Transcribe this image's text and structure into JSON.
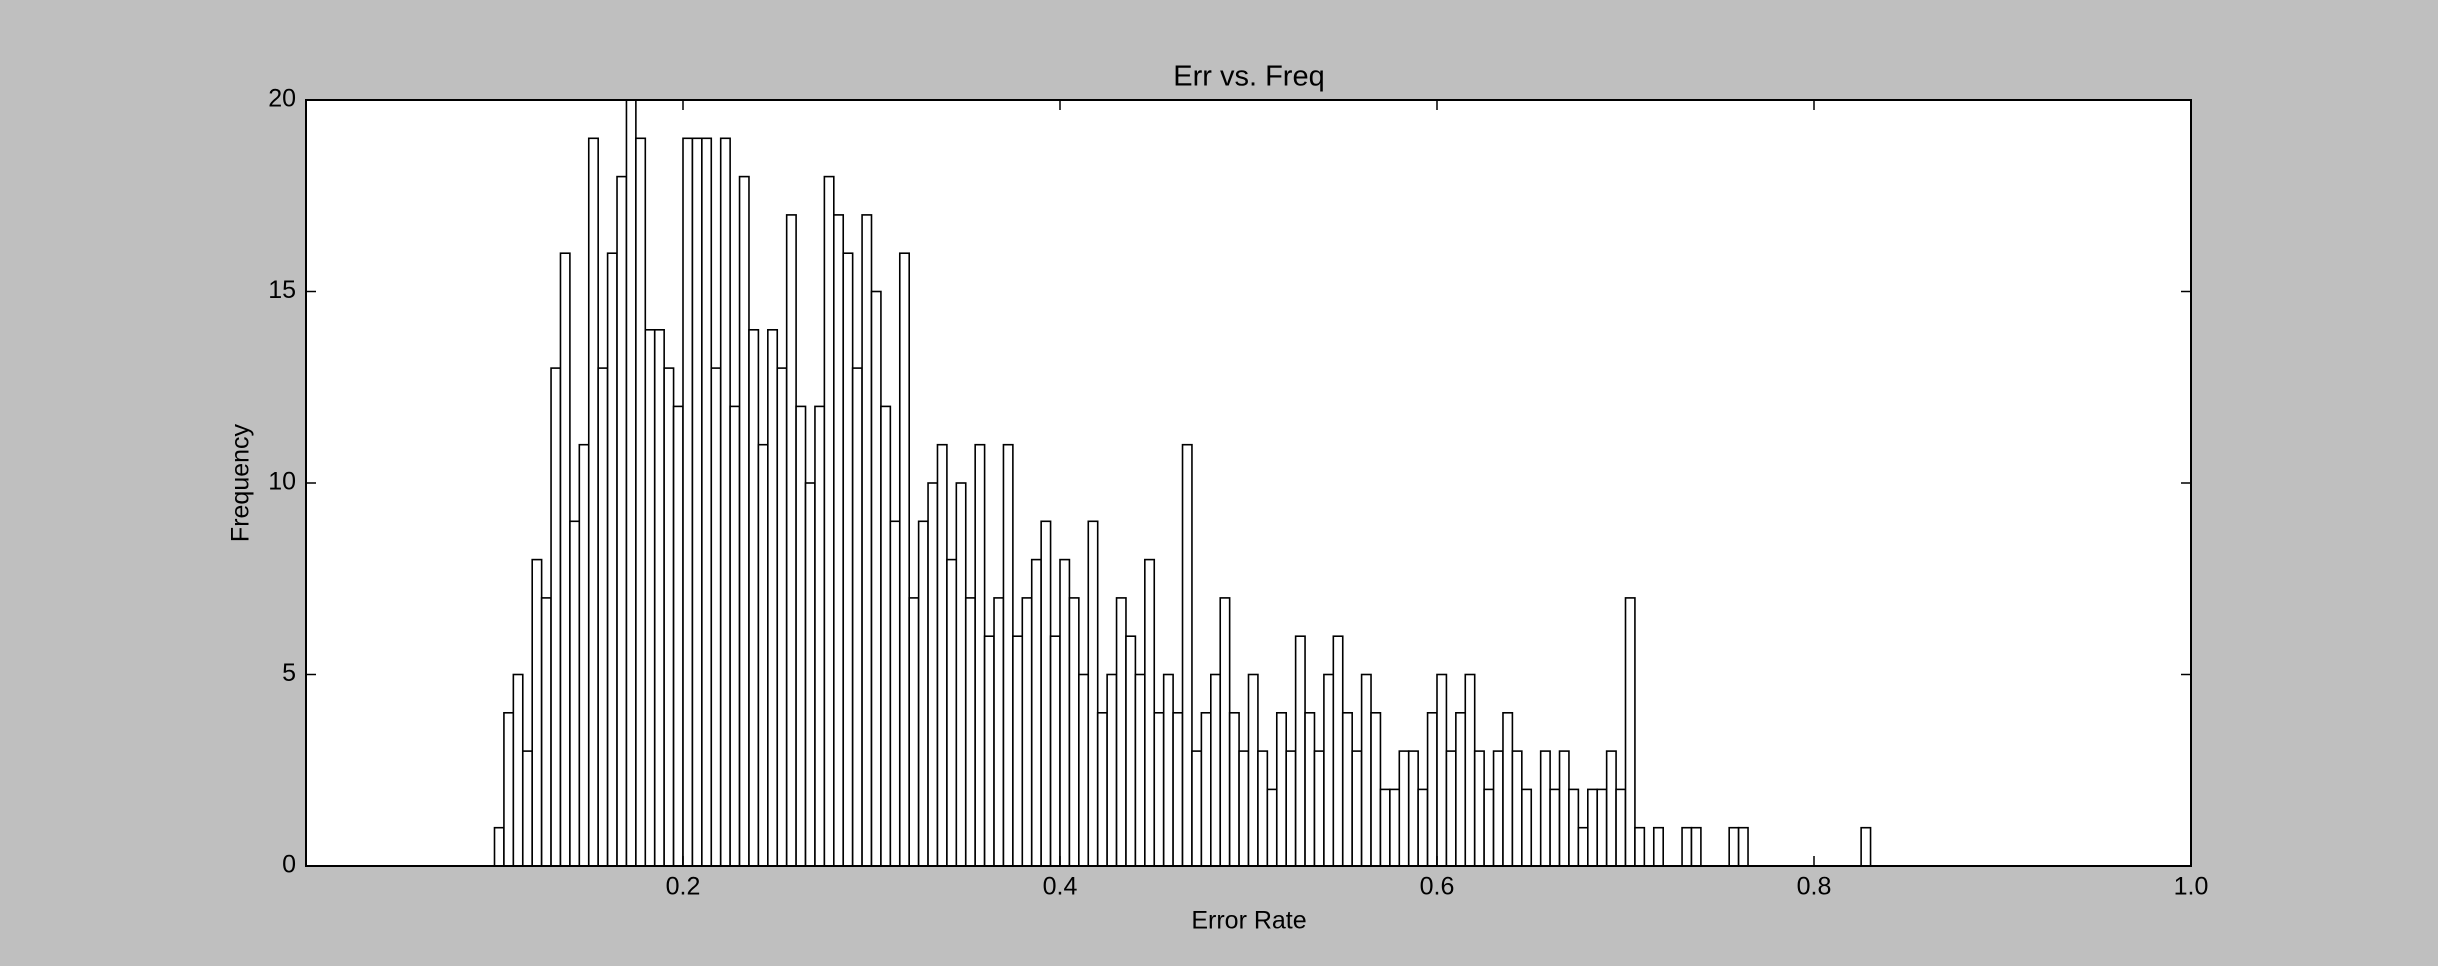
{
  "chart_data": {
    "type": "histogram",
    "title": "Err vs. Freq",
    "x_label": "Error Rate",
    "y_label": "Frequency",
    "bins": [
      0.1,
      0.105,
      0.11,
      0.115,
      0.12,
      0.125,
      0.13,
      0.135,
      0.14,
      0.145,
      0.15,
      0.155,
      0.16,
      0.165,
      0.17,
      0.175,
      0.18,
      0.185,
      0.19,
      0.195,
      0.2,
      0.205,
      0.21,
      0.215,
      0.22,
      0.225,
      0.23,
      0.235,
      0.24,
      0.245,
      0.25,
      0.255,
      0.26,
      0.265,
      0.27,
      0.275,
      0.28,
      0.285,
      0.29,
      0.295,
      0.3,
      0.305,
      0.31,
      0.315,
      0.32,
      0.325,
      0.33,
      0.335,
      0.34,
      0.345,
      0.35,
      0.355,
      0.36,
      0.365,
      0.37,
      0.375,
      0.38,
      0.385,
      0.39,
      0.395,
      0.4,
      0.405,
      0.41,
      0.415,
      0.42,
      0.425,
      0.43,
      0.435,
      0.44,
      0.445,
      0.45,
      0.455,
      0.46,
      0.465,
      0.47,
      0.475,
      0.48,
      0.485,
      0.49,
      0.495,
      0.5,
      0.505,
      0.51,
      0.515,
      0.52,
      0.525,
      0.53,
      0.535,
      0.54,
      0.545,
      0.55,
      0.555,
      0.56,
      0.565,
      0.57,
      0.575,
      0.58,
      0.585,
      0.59,
      0.595,
      0.6,
      0.605,
      0.61,
      0.615,
      0.62,
      0.625,
      0.63,
      0.635,
      0.64,
      0.645,
      0.65,
      0.655,
      0.66,
      0.665,
      0.67,
      0.675,
      0.68,
      0.685,
      0.69,
      0.695,
      0.7,
      0.705,
      0.71,
      0.715,
      0.72,
      0.725,
      0.73,
      0.735,
      0.74,
      0.745,
      0.75,
      0.755,
      0.76,
      0.765,
      0.77,
      0.775,
      0.78,
      0.785,
      0.79,
      0.795,
      0.8,
      0.805,
      0.81,
      0.815,
      0.82,
      0.825,
      0.83,
      0.835
    ],
    "values": [
      1,
      4,
      5,
      3,
      8,
      7,
      13,
      16,
      9,
      11,
      19,
      13,
      16,
      18,
      20,
      19,
      14,
      14,
      13,
      12,
      19,
      19,
      19,
      13,
      19,
      12,
      18,
      14,
      11,
      14,
      13,
      17,
      12,
      10,
      12,
      18,
      17,
      16,
      13,
      17,
      15,
      12,
      9,
      16,
      7,
      9,
      10,
      11,
      8,
      10,
      7,
      11,
      6,
      7,
      11,
      6,
      7,
      8,
      9,
      6,
      8,
      7,
      5,
      9,
      4,
      5,
      7,
      6,
      5,
      8,
      4,
      5,
      4,
      11,
      3,
      4,
      5,
      7,
      4,
      3,
      5,
      3,
      2,
      4,
      3,
      6,
      4,
      3,
      5,
      6,
      4,
      3,
      5,
      4,
      2,
      2,
      3,
      3,
      2,
      4,
      5,
      3,
      4,
      5,
      3,
      2,
      3,
      4,
      3,
      2,
      0,
      3,
      2,
      3,
      2,
      1,
      2,
      2,
      3,
      2,
      7,
      1,
      0,
      1,
      0,
      0,
      1,
      1,
      0,
      0,
      0,
      1,
      1,
      0,
      0,
      0,
      0,
      0,
      0,
      0,
      0,
      0,
      0,
      0,
      0,
      1,
      0
    ],
    "color": "#ffffff",
    "edge_color": "#000000",
    "xlim": [
      0,
      1
    ],
    "xticks": [
      0.2,
      0.4,
      0.6,
      0.8,
      {
        "value": 1.0,
        "label": "1.0"
      }
    ],
    "ylim": [
      0,
      20
    ],
    "yticks": [
      0,
      5,
      10,
      15,
      20
    ]
  }
}
